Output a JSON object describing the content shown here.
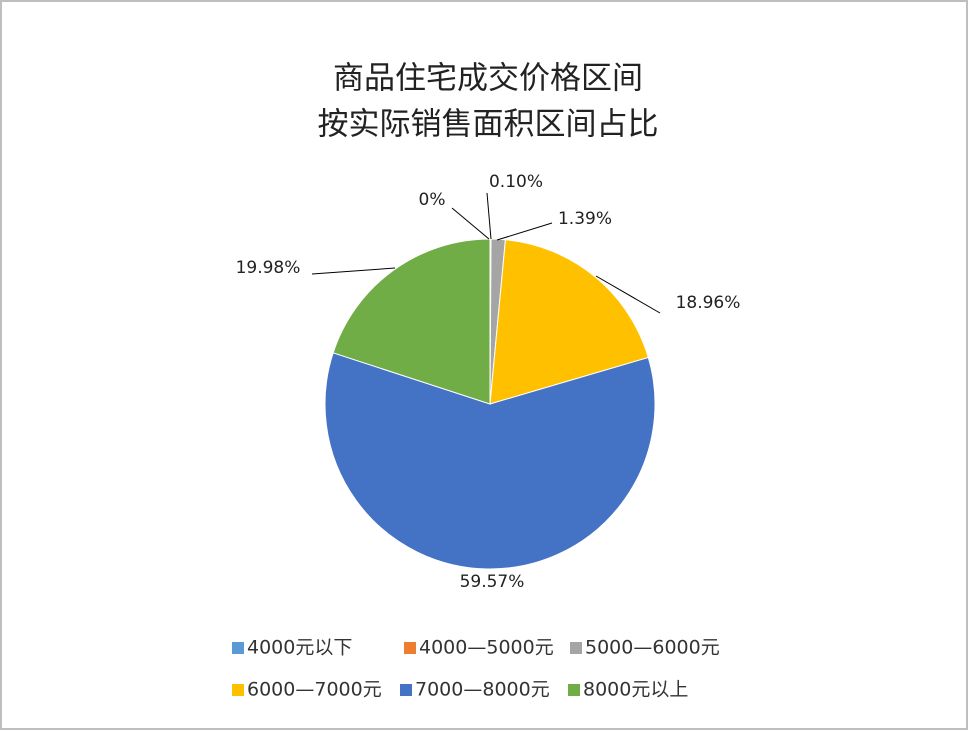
{
  "chart_data": {
    "type": "pie",
    "title": [
      "商品住宅成交价格区间",
      "按实际销售面积区间占比"
    ],
    "categories": [
      "4000元以下",
      "4000—5000元",
      "5000—6000元",
      "6000—7000元",
      "7000—8000元",
      "8000元以上"
    ],
    "values": [
      0,
      0.1,
      1.39,
      18.96,
      59.57,
      19.98
    ],
    "value_labels": [
      "0%",
      "0.10%",
      "1.39%",
      "18.96%",
      "59.57%",
      "19.98%"
    ],
    "colors": [
      "#5b9bd5",
      "#ed7d31",
      "#a5a5a5",
      "#ffc000",
      "#4472c4",
      "#70ad47"
    ]
  }
}
